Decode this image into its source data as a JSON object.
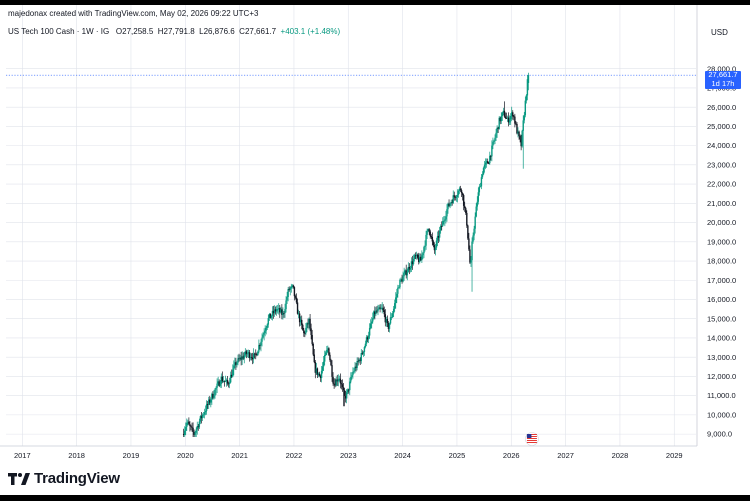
{
  "header": {
    "attribution": "majedonax created with TradingView.com, May 02, 2026 09:22 UTC+3",
    "symbol": "US Tech 100 Cash · 1W · IG",
    "ohlc": {
      "open_label": "O",
      "open": "27,258.5",
      "high_label": "H",
      "high": "27,791.8",
      "low_label": "L",
      "low": "26,876.6",
      "close_label": "C",
      "close": "27,661.7",
      "change": "+403.1 (+1.48%)"
    },
    "currency": "USD"
  },
  "price_tag": {
    "price": "27,661.7",
    "countdown": "1d 17h"
  },
  "colors": {
    "up": "#089981",
    "down": "#131722",
    "tag": "#2962ff",
    "grid": "#e0e3eb"
  },
  "flag_icon": "us-flag-icon",
  "brand": {
    "name": "TradingView"
  },
  "chart_data": {
    "type": "candlestick",
    "x_ticks": [
      "2017",
      "2018",
      "2019",
      "2020",
      "2021",
      "2022",
      "2023",
      "2024",
      "2025",
      "2026",
      "2027",
      "2028",
      "2029"
    ],
    "y_ticks": [
      "9,000.0",
      "10,000.0",
      "11,000.0",
      "12,000.0",
      "13,000.0",
      "14,000.0",
      "15,000.0",
      "16,000.0",
      "17,000.0",
      "18,000.0",
      "19,000.0",
      "20,000.0",
      "21,000.0",
      "22,000.0",
      "23,000.0",
      "24,000.0",
      "25,000.0",
      "26,000.0",
      "27,000.0",
      "28,000.0"
    ],
    "ylim": [
      8850,
      28400
    ],
    "xlim": [
      2016.7,
      2029.4
    ],
    "last_price": 27661.7,
    "grid": true,
    "path_points": [
      [
        2019.97,
        9000
      ],
      [
        2020.05,
        9600
      ],
      [
        2020.18,
        9000
      ],
      [
        2020.3,
        9800
      ],
      [
        2020.5,
        10900
      ],
      [
        2020.68,
        11900
      ],
      [
        2020.8,
        11600
      ],
      [
        2020.95,
        12700
      ],
      [
        2021.15,
        13200
      ],
      [
        2021.3,
        13000
      ],
      [
        2021.55,
        15000
      ],
      [
        2021.7,
        15500
      ],
      [
        2021.82,
        15200
      ],
      [
        2021.92,
        16500
      ],
      [
        2022.0,
        16600
      ],
      [
        2022.1,
        15200
      ],
      [
        2022.2,
        14200
      ],
      [
        2022.3,
        14900
      ],
      [
        2022.4,
        12400
      ],
      [
        2022.5,
        12000
      ],
      [
        2022.6,
        13100
      ],
      [
        2022.65,
        13500
      ],
      [
        2022.75,
        11600
      ],
      [
        2022.85,
        12000
      ],
      [
        2022.95,
        10900
      ],
      [
        2023.0,
        11100
      ],
      [
        2023.1,
        12200
      ],
      [
        2023.25,
        13000
      ],
      [
        2023.4,
        14300
      ],
      [
        2023.5,
        15300
      ],
      [
        2023.65,
        15500
      ],
      [
        2023.75,
        14500
      ],
      [
        2023.85,
        15500
      ],
      [
        2023.95,
        16800
      ],
      [
        2024.1,
        17500
      ],
      [
        2024.25,
        18200
      ],
      [
        2024.35,
        18000
      ],
      [
        2024.5,
        19800
      ],
      [
        2024.6,
        18500
      ],
      [
        2024.7,
        19500
      ],
      [
        2024.85,
        20800
      ],
      [
        2024.95,
        21300
      ],
      [
        2025.1,
        21800
      ],
      [
        2025.2,
        20000
      ],
      [
        2025.27,
        17500
      ],
      [
        2025.3,
        19000
      ],
      [
        2025.4,
        21300
      ],
      [
        2025.5,
        22800
      ],
      [
        2025.6,
        23200
      ],
      [
        2025.7,
        24200
      ],
      [
        2025.8,
        25300
      ],
      [
        2025.88,
        25700
      ],
      [
        2025.95,
        25300
      ],
      [
        2026.05,
        25700
      ],
      [
        2026.12,
        24800
      ],
      [
        2026.2,
        24000
      ],
      [
        2026.25,
        25500
      ],
      [
        2026.33,
        27661.7
      ]
    ],
    "extremes": [
      [
        2020.2,
        8850
      ],
      [
        2022.92,
        10450
      ],
      [
        2025.27,
        16400
      ],
      [
        2025.87,
        26300
      ],
      [
        2026.22,
        22800
      ],
      [
        2026.33,
        27850
      ]
    ]
  }
}
